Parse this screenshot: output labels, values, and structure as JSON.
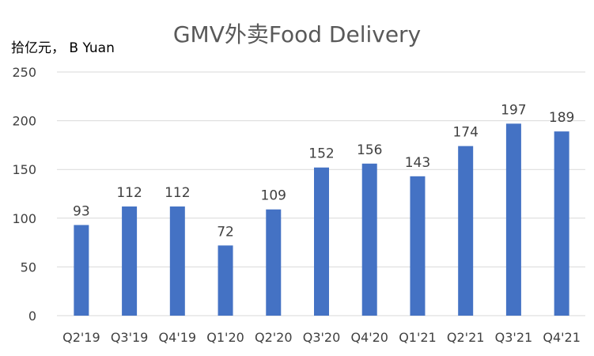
{
  "chart_data": {
    "type": "bar",
    "title": "GMV外卖Food Delivery",
    "unit_label": "拾亿元， B Yuan",
    "categories": [
      "Q2'19",
      "Q3'19",
      "Q4'19",
      "Q1'20",
      "Q2'20",
      "Q3'20",
      "Q4'20",
      "Q1'21",
      "Q2'21",
      "Q3'21",
      "Q4'21"
    ],
    "values": [
      93,
      112,
      112,
      72,
      109,
      152,
      156,
      143,
      174,
      197,
      189
    ],
    "ylim": [
      0,
      250
    ],
    "yticks": [
      0,
      50,
      100,
      150,
      200,
      250
    ],
    "grid": true,
    "bar_color": "#4472C4",
    "grid_color": "#D9D9D9",
    "text_color": "#404040"
  }
}
